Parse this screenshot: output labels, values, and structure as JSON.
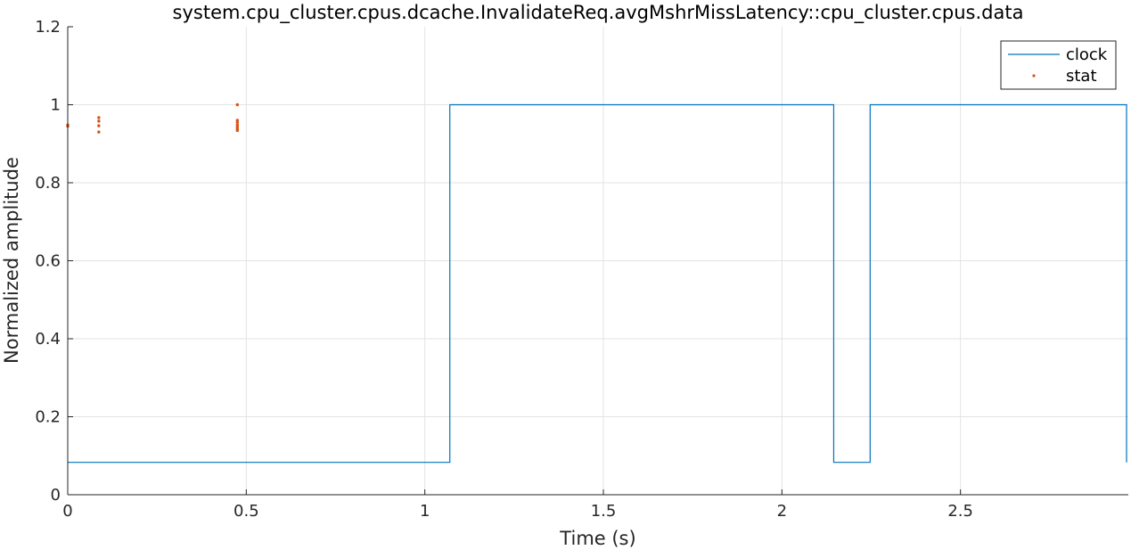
{
  "chart_data": {
    "type": "line",
    "title": "system.cpu_cluster.cpus.dcache.InvalidateReq.avgMshrMissLatency::cpu_cluster.cpus.data",
    "xlabel": "Time (s)",
    "ylabel": "Normalized amplitude",
    "xlim": [
      0,
      2.97
    ],
    "ylim": [
      0,
      1.2
    ],
    "xticks": [
      0,
      0.5,
      1,
      1.5,
      2,
      2.5
    ],
    "xtick_labels": [
      "0",
      "0.5",
      "1",
      "1.5",
      "2",
      "2.5"
    ],
    "yticks": [
      0,
      0.2,
      0.4,
      0.6,
      0.8,
      1,
      1.2
    ],
    "ytick_labels": [
      "0",
      "0.2",
      "0.4",
      "0.6",
      "0.8",
      "1",
      "1.2"
    ],
    "grid": true,
    "legend_position": "top-right",
    "series": [
      {
        "name": "clock",
        "kind": "stairs",
        "color": "#0072BD",
        "x": [
          0,
          1.07,
          1.07,
          2.145,
          2.145,
          2.247,
          2.247,
          2.965,
          2.965
        ],
        "y": [
          0.083,
          0.083,
          1,
          1,
          0.083,
          0.083,
          1,
          1,
          0.083
        ]
      },
      {
        "name": "stat",
        "kind": "scatter",
        "color": "#D95319",
        "x": [
          0.0,
          0.0,
          0.087,
          0.087,
          0.087,
          0.087,
          0.475,
          0.475,
          0.475,
          0.475,
          0.475,
          0.475,
          0.475
        ],
        "y": [
          0.948,
          0.945,
          0.967,
          0.958,
          0.946,
          0.93,
          1.0,
          0.96,
          0.955,
          0.948,
          0.943,
          0.938,
          0.934
        ]
      }
    ]
  }
}
